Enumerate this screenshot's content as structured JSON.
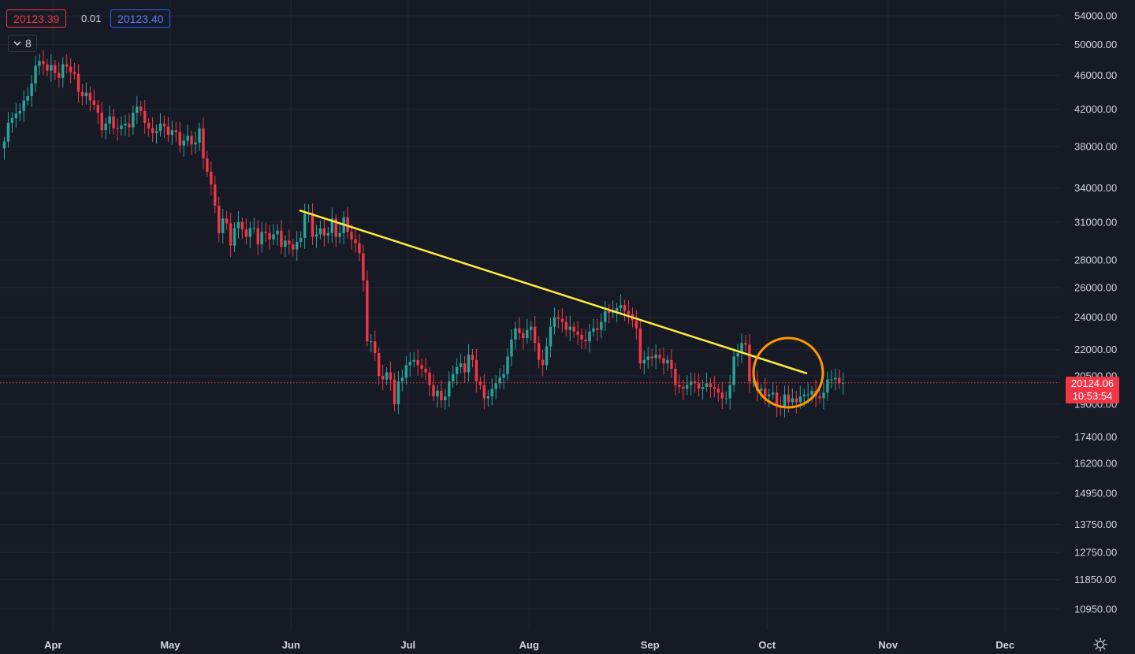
{
  "header": {
    "bid": "20123.39",
    "spread": "0.01",
    "ask": "20123.40",
    "collapse_count": "8"
  },
  "last_price": {
    "price": "20124.06",
    "countdown": "10:53:54"
  },
  "colors": {
    "background": "#161a25",
    "grid": "#232734",
    "up": "#26a69a",
    "down": "#f23645",
    "trendline": "#ffeb3b",
    "circle": "#ff9800",
    "text": "#d1d4dc"
  },
  "icons": {
    "settings": "gear-icon",
    "collapse": "chevron-down-icon"
  },
  "chart_data": {
    "type": "candlestick",
    "scale": "log",
    "ylim": [
      10400,
      56000
    ],
    "price_ticks": [
      "54000.00",
      "50000.00",
      "46000.00",
      "42000.00",
      "38000.00",
      "34000.00",
      "31000.00",
      "28000.00",
      "26000.00",
      "24000.00",
      "22000.00",
      "20500.00",
      "19000.00",
      "17400.00",
      "16200.00",
      "14950.00",
      "13750.00",
      "12750.00",
      "11850.00",
      "10950.00"
    ],
    "time_ticks": [
      "Apr",
      "May",
      "Jun",
      "Jul",
      "Aug",
      "Sep",
      "Oct",
      "Nov",
      "Dec"
    ],
    "grid": true,
    "close": [
      38500,
      40500,
      41000,
      41500,
      41800,
      43000,
      43500,
      45000,
      47200,
      47800,
      47400,
      46600,
      47300,
      46300,
      45700,
      47400,
      47100,
      46400,
      46200,
      44000,
      43500,
      43900,
      43000,
      42500,
      41600,
      39700,
      40400,
      41200,
      39900,
      39800,
      40200,
      40400,
      40000,
      41600,
      42300,
      41800,
      40500,
      39900,
      39400,
      39600,
      40400,
      40100,
      39200,
      39700,
      39500,
      38100,
      38600,
      39100,
      38200,
      38400,
      39900,
      36800,
      35500,
      34300,
      32400,
      30100,
      31300,
      30900,
      29100,
      30500,
      31000,
      30400,
      29800,
      30500,
      30500,
      29200,
      30200,
      30100,
      29600,
      30000,
      30300,
      29000,
      29500,
      29200,
      28800,
      29400,
      29700,
      31700,
      31800,
      29800,
      30000,
      30500,
      29900,
      30100,
      31300,
      29800,
      30100,
      31400,
      30200,
      29600,
      29300,
      28500,
      26500,
      22500,
      22500,
      21800,
      20500,
      20300,
      20700,
      20300,
      19000,
      20200,
      20400,
      21100,
      21300,
      21400,
      21100,
      20900,
      20700,
      20000,
      19400,
      19700,
      19200,
      19400,
      20200,
      20600,
      21000,
      21200,
      20700,
      21700,
      21400,
      20200,
      20000,
      19300,
      19400,
      19800,
      20100,
      20400,
      20600,
      21600,
      22600,
      23300,
      23000,
      22700,
      23200,
      23400,
      22400,
      21400,
      21100,
      22200,
      23400,
      24000,
      23900,
      23700,
      23200,
      23400,
      23100,
      22900,
      22600,
      22500,
      23100,
      23300,
      23200,
      23700,
      24400,
      24300,
      24400,
      24600,
      24800,
      24400,
      24200,
      23800,
      23300,
      21200,
      21400,
      21600,
      21500,
      21700,
      21500,
      21200,
      21400,
      20900,
      20000,
      19900,
      19800,
      20000,
      20200,
      20100,
      19800,
      19900,
      20100,
      19900,
      19800,
      19600,
      19300,
      19300,
      20000,
      21600,
      21800,
      22400,
      22300,
      20200,
      20200,
      19700,
      19800,
      19400,
      19500,
      19600,
      18900,
      18800,
      19500,
      19100,
      19300,
      19100,
      19400,
      19500,
      19500,
      19700,
      19400,
      19300,
      19600,
      20300,
      20300,
      20400,
      20100,
      20124.06
    ]
  }
}
